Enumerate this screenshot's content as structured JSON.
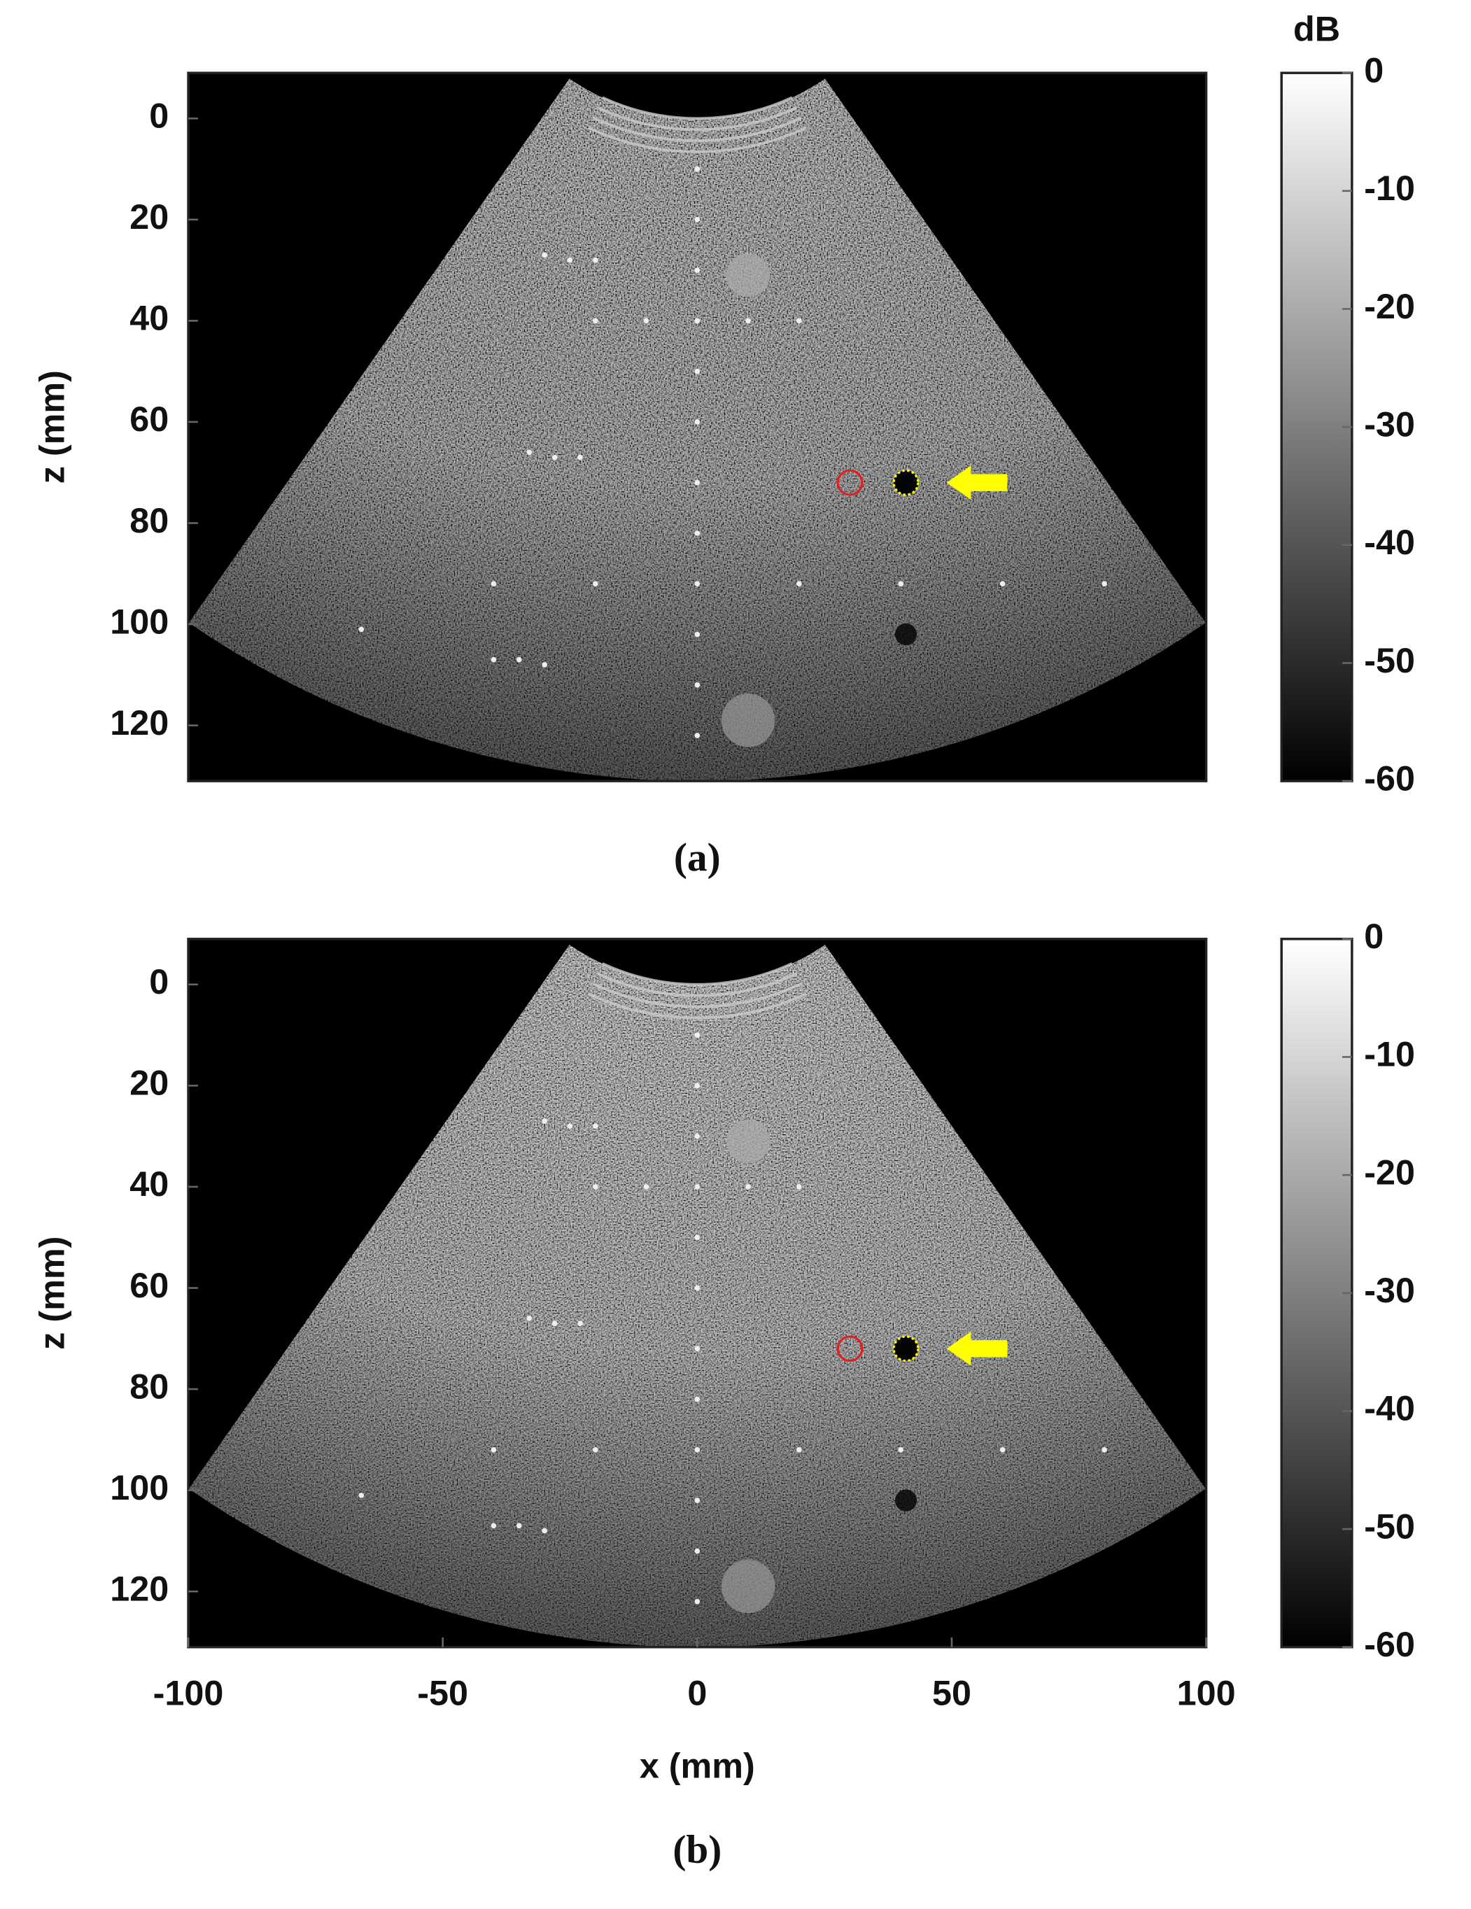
{
  "chart_data": [
    {
      "type": "image",
      "caption": "(a)",
      "ylabel": "z (mm)",
      "ylim": [
        -9,
        131
      ],
      "yticks": [
        0,
        20,
        40,
        60,
        80,
        100,
        120
      ],
      "xlim": [
        -100,
        100
      ],
      "colorbar": {
        "label": "dB",
        "clim": [
          -60,
          0
        ],
        "ticks": [
          0,
          -10,
          -20,
          -30,
          -40,
          -50,
          -60
        ]
      }
    },
    {
      "type": "image",
      "caption": "(b)",
      "ylabel": "z (mm)",
      "xlabel": "x (mm)",
      "ylim": [
        -9,
        131
      ],
      "yticks": [
        0,
        20,
        40,
        60,
        80,
        100,
        120
      ],
      "xlim": [
        -100,
        100
      ],
      "xticks": [
        -100,
        -50,
        0,
        50,
        100
      ],
      "colorbar": {
        "clim": [
          -60,
          0
        ],
        "ticks": [
          0,
          -10,
          -20,
          -30,
          -40,
          -50,
          -60
        ]
      }
    }
  ]
}
